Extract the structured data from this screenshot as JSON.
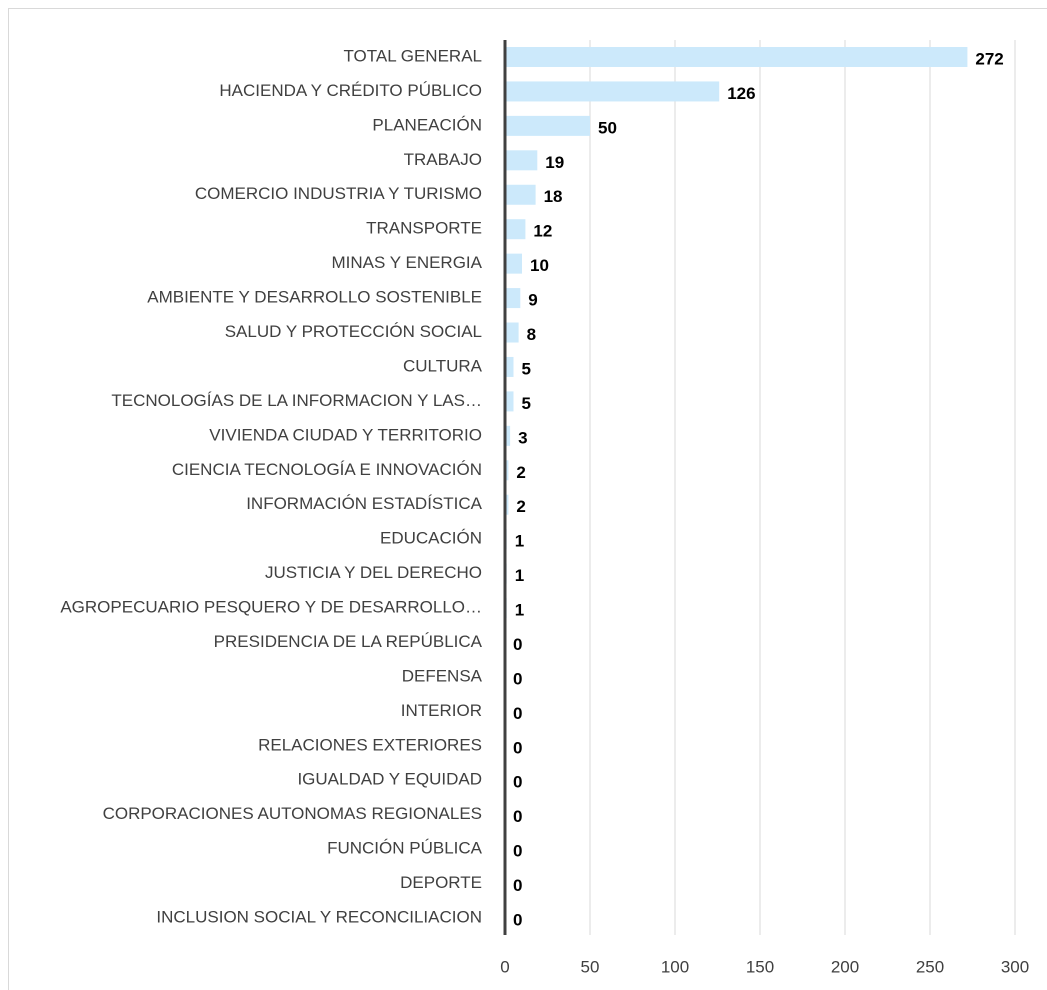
{
  "chart_data": {
    "type": "bar",
    "orientation": "horizontal",
    "categories": [
      "TOTAL GENERAL",
      "HACIENDA Y CRÉDITO PÚBLICO",
      "PLANEACIÓN",
      "TRABAJO",
      "COMERCIO INDUSTRIA Y TURISMO",
      "TRANSPORTE",
      "MINAS Y ENERGIA",
      "AMBIENTE Y DESARROLLO SOSTENIBLE",
      "SALUD Y PROTECCIÓN SOCIAL",
      "CULTURA",
      "TECNOLOGÍAS DE LA INFORMACION Y LAS…",
      "VIVIENDA CIUDAD Y TERRITORIO",
      "CIENCIA TECNOLOGÍA E INNOVACIÓN",
      "INFORMACIÓN ESTADÍSTICA",
      "EDUCACIÓN",
      "JUSTICIA Y DEL DERECHO",
      "AGROPECUARIO PESQUERO Y DE DESARROLLO…",
      "PRESIDENCIA DE LA REPÚBLICA",
      "DEFENSA",
      "INTERIOR",
      "RELACIONES EXTERIORES",
      "IGUALDAD Y EQUIDAD",
      "CORPORACIONES AUTONOMAS REGIONALES",
      "FUNCIÓN PÚBLICA",
      "DEPORTE",
      "INCLUSION SOCIAL Y RECONCILIACION"
    ],
    "values": [
      272,
      126,
      50,
      19,
      18,
      12,
      10,
      9,
      8,
      5,
      5,
      3,
      2,
      2,
      1,
      1,
      1,
      0,
      0,
      0,
      0,
      0,
      0,
      0,
      0,
      0
    ],
    "color": "#cce9fb",
    "xlim": [
      0,
      300
    ],
    "xticks": [
      0,
      50,
      100,
      150,
      200,
      250,
      300
    ],
    "grid": true
  }
}
